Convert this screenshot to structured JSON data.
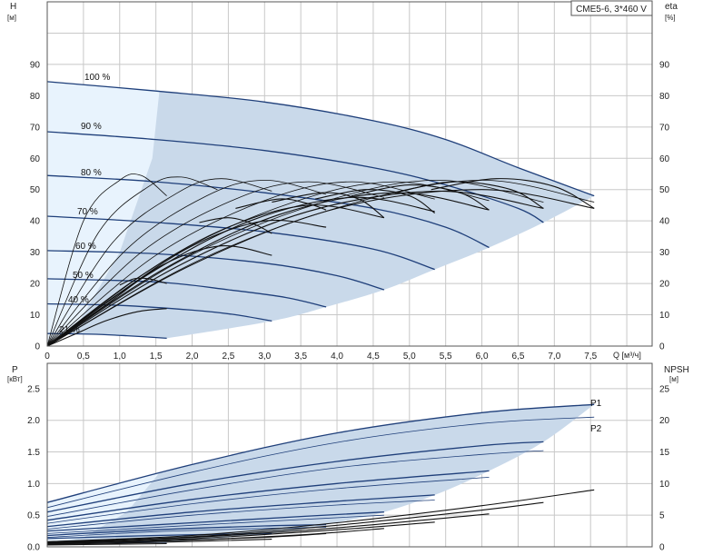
{
  "title": "CME5-6, 3*460 V",
  "colors": {
    "curve": "#1f3f7a",
    "eff": "#111111",
    "region": "#c9d9ea",
    "region_light": "#e8f3fd",
    "grid": "#c8c8c8"
  },
  "chart_data": [
    {
      "type": "line",
      "name": "head",
      "y_left_label": "H",
      "y_left_unit": "[м]",
      "y_right_label": "eta",
      "y_right_unit": "[%]",
      "x_label": "Q [м³/ч]",
      "xlim": [
        0,
        8.35
      ],
      "ylim": [
        0,
        110
      ],
      "x_ticks": [
        0,
        0.5,
        1.0,
        1.5,
        2.0,
        2.5,
        3.0,
        3.5,
        4.0,
        4.5,
        5.0,
        5.5,
        6.0,
        6.5,
        7.0,
        7.5
      ],
      "x_tick_labels": [
        "0",
        "0,5",
        "1,0",
        "1,5",
        "2,0",
        "2,5",
        "3,0",
        "3,5",
        "4,0",
        "4,5",
        "5,0",
        "5,5",
        "6,0",
        "6,5",
        "7,0",
        "7,5"
      ],
      "y_ticks": [
        0,
        10,
        20,
        30,
        40,
        50,
        60,
        70,
        80,
        90
      ],
      "y_right_ticks": [
        0,
        10,
        20,
        30,
        40,
        50,
        60,
        70,
        80,
        90
      ],
      "grid": true,
      "speed_curves": [
        {
          "label": "100 %",
          "q": [
            0,
            1.5,
            3.0,
            4.5,
            5.5,
            6.5,
            7.55
          ],
          "h": [
            84.5,
            81.5,
            78,
            72,
            66,
            57,
            48
          ]
        },
        {
          "label": "90 %",
          "q": [
            0,
            1.5,
            3.0,
            4.5,
            5.5,
            6.5,
            6.85
          ],
          "h": [
            68.5,
            66,
            62.5,
            57,
            51.5,
            44,
            39.5
          ]
        },
        {
          "label": "80 %",
          "q": [
            0,
            1.5,
            3.0,
            4.5,
            5.5,
            6.1
          ],
          "h": [
            54.5,
            52.5,
            49,
            44,
            38,
            31.5
          ]
        },
        {
          "label": "70 %",
          "q": [
            0,
            1.5,
            3.0,
            4.5,
            5.35
          ],
          "h": [
            41.5,
            39.5,
            36.5,
            31,
            24.5
          ]
        },
        {
          "label": "60 %",
          "q": [
            0,
            1.5,
            3.0,
            4.0,
            4.65
          ],
          "h": [
            30.5,
            29.5,
            26.5,
            22.5,
            18
          ]
        },
        {
          "label": "50 %",
          "q": [
            0,
            1.5,
            2.5,
            3.3,
            3.85
          ],
          "h": [
            21.5,
            20.5,
            18,
            15.5,
            12.5
          ]
        },
        {
          "label": "40 %",
          "q": [
            0,
            1.0,
            2.0,
            2.6,
            3.1
          ],
          "h": [
            13.5,
            13,
            11.5,
            10,
            8
          ]
        },
        {
          "label": "21 %",
          "q": [
            0,
            0.6,
            1.1,
            1.65
          ],
          "h": [
            4,
            3.8,
            3.3,
            2.5
          ]
        }
      ],
      "efficiency_curves": [
        {
          "q": [
            0,
            0.5,
            1.0,
            1.3,
            1.65
          ],
          "eta": [
            0,
            40,
            53,
            54.5,
            48
          ]
        },
        {
          "q": [
            0,
            0.7,
            1.4,
            1.85,
            2.35
          ],
          "eta": [
            0,
            36,
            51,
            54,
            50
          ]
        },
        {
          "q": [
            0,
            0.9,
            1.8,
            2.4,
            3.1
          ],
          "eta": [
            0,
            33,
            49,
            53.5,
            49.5
          ]
        },
        {
          "q": [
            0,
            1.1,
            2.2,
            3.0,
            3.85
          ],
          "eta": [
            0,
            31,
            48,
            53,
            48.5
          ]
        },
        {
          "q": [
            0,
            1.3,
            2.6,
            3.6,
            4.65
          ],
          "eta": [
            0,
            30,
            47,
            52.5,
            47.5
          ]
        },
        {
          "q": [
            0,
            1.5,
            3.0,
            4.2,
            5.35
          ],
          "eta": [
            0,
            29,
            46.5,
            52.5,
            47
          ]
        },
        {
          "q": [
            0,
            1.7,
            3.4,
            4.8,
            6.1
          ],
          "eta": [
            0,
            28.5,
            46,
            52.5,
            46.5
          ]
        },
        {
          "q": [
            0,
            1.9,
            3.8,
            5.4,
            6.85
          ],
          "eta": [
            0,
            28,
            46,
            53,
            46
          ]
        },
        {
          "q": [
            0,
            2.1,
            4.2,
            6.0,
            7.55
          ],
          "eta": [
            0,
            27.5,
            45.5,
            53,
            46
          ]
        },
        {
          "q": [
            0,
            0.4,
            0.8,
            1.25,
            1.65
          ],
          "eta": [
            0,
            4,
            8,
            11,
            12
          ]
        },
        {
          "q": [
            0,
            0.8,
            1.6,
            2.4,
            3.1
          ],
          "eta": [
            0,
            13,
            26,
            32,
            29
          ]
        },
        {
          "q": [
            0,
            1.0,
            2.0,
            3.0,
            3.85
          ],
          "eta": [
            0,
            17,
            32,
            40,
            38
          ]
        },
        {
          "q": [
            0,
            1.2,
            2.4,
            3.6,
            4.65
          ],
          "eta": [
            0,
            21,
            37,
            45,
            41
          ]
        },
        {
          "q": [
            0,
            1.4,
            2.8,
            4.2,
            5.35
          ],
          "eta": [
            0,
            23,
            40,
            47.5,
            43
          ]
        },
        {
          "q": [
            0,
            1.6,
            3.2,
            4.8,
            6.1
          ],
          "eta": [
            0,
            24.5,
            42,
            49,
            43.5
          ]
        },
        {
          "q": [
            0,
            1.8,
            3.6,
            5.4,
            6.85
          ],
          "eta": [
            0,
            25.5,
            43,
            49.5,
            44
          ]
        },
        {
          "q": [
            0,
            2.0,
            4.0,
            6.0,
            7.55
          ],
          "eta": [
            0,
            26,
            44,
            50,
            44
          ]
        }
      ],
      "efficiency_loops": [
        {
          "q": [
            1.0,
            1.2,
            1.4,
            1.65
          ],
          "eta": [
            19.5,
            21.5,
            21.5,
            20
          ]
        },
        {
          "q": [
            2.1,
            2.5,
            2.85,
            3.1
          ],
          "eta": [
            39.5,
            41,
            39,
            36
          ]
        },
        {
          "q": [
            2.6,
            3.2,
            3.6,
            3.85
          ],
          "eta": [
            44,
            47,
            45.5,
            43.5
          ]
        },
        {
          "q": [
            3.1,
            3.8,
            4.3,
            4.65
          ],
          "eta": [
            46,
            49,
            47,
            41
          ]
        },
        {
          "q": [
            3.7,
            4.4,
            5.0,
            5.35
          ],
          "eta": [
            47,
            50,
            48,
            42.5
          ]
        },
        {
          "q": [
            4.2,
            5.0,
            5.7,
            6.1
          ],
          "eta": [
            48,
            51.5,
            49,
            43.5
          ]
        },
        {
          "q": [
            4.8,
            5.6,
            6.4,
            6.85
          ],
          "eta": [
            49,
            52.5,
            50,
            44
          ]
        },
        {
          "q": [
            5.3,
            6.2,
            7.0,
            7.55
          ],
          "eta": [
            50,
            53.5,
            51,
            44
          ]
        }
      ]
    },
    {
      "type": "line",
      "name": "power",
      "y_left_label": "P",
      "y_left_unit": "[кВт]",
      "y_right_label": "NPSH",
      "y_right_unit": "[м]",
      "xlim": [
        0,
        8.35
      ],
      "ylim": [
        0,
        2.9
      ],
      "y_ticks": [
        0,
        0.5,
        1.0,
        1.5,
        2.0,
        2.5
      ],
      "y_tick_labels": [
        "0.0",
        "0.5",
        "1.0",
        "1.5",
        "2.0",
        "2.5"
      ],
      "y_right_ticks": [
        0,
        5,
        10,
        15,
        20,
        25
      ],
      "series_labels": [
        "P1",
        "P2"
      ],
      "p1_curves": [
        {
          "q": [
            0,
            2.0,
            4.0,
            6.0,
            7.55
          ],
          "p": [
            0.7,
            1.3,
            1.8,
            2.12,
            2.25
          ]
        },
        {
          "q": [
            0,
            2.0,
            4.0,
            6.0,
            6.85
          ],
          "p": [
            0.55,
            1.0,
            1.35,
            1.6,
            1.66
          ]
        },
        {
          "q": [
            0,
            2.0,
            4.0,
            6.1
          ],
          "p": [
            0.42,
            0.75,
            1.0,
            1.2
          ]
        },
        {
          "q": [
            0,
            2.0,
            4.0,
            5.35
          ],
          "p": [
            0.32,
            0.55,
            0.72,
            0.82
          ]
        },
        {
          "q": [
            0,
            2.0,
            3.5,
            4.65
          ],
          "p": [
            0.25,
            0.38,
            0.48,
            0.55
          ]
        },
        {
          "q": [
            0,
            1.5,
            3.0,
            3.85
          ],
          "p": [
            0.18,
            0.27,
            0.33,
            0.35
          ]
        },
        {
          "q": [
            0,
            1.5,
            3.1
          ],
          "p": [
            0.13,
            0.18,
            0.21
          ]
        },
        {
          "q": [
            0,
            0.8,
            1.65
          ],
          "p": [
            0.06,
            0.07,
            0.07
          ]
        }
      ],
      "p2_curves": [
        {
          "q": [
            0,
            2.0,
            4.0,
            6.0,
            7.55
          ],
          "p": [
            0.62,
            1.18,
            1.65,
            1.95,
            2.05
          ]
        },
        {
          "q": [
            0,
            2.0,
            4.0,
            6.0,
            6.85
          ],
          "p": [
            0.48,
            0.9,
            1.25,
            1.46,
            1.52
          ]
        },
        {
          "q": [
            0,
            2.0,
            4.0,
            6.1
          ],
          "p": [
            0.37,
            0.68,
            0.92,
            1.1
          ]
        },
        {
          "q": [
            0,
            2.0,
            4.0,
            5.35
          ],
          "p": [
            0.28,
            0.5,
            0.66,
            0.74
          ]
        },
        {
          "q": [
            0,
            2.0,
            3.5,
            4.65
          ],
          "p": [
            0.21,
            0.34,
            0.43,
            0.5
          ]
        },
        {
          "q": [
            0,
            1.5,
            3.0,
            3.85
          ],
          "p": [
            0.15,
            0.24,
            0.29,
            0.31
          ]
        }
      ],
      "npsh_curves": [
        {
          "q": [
            0,
            2.0,
            4.0,
            6.0,
            7.55
          ],
          "npsh": [
            0.8,
            1.8,
            3.8,
            6.5,
            9.0
          ]
        },
        {
          "q": [
            0,
            2.0,
            4.0,
            6.0,
            6.85
          ],
          "npsh": [
            0.8,
            1.6,
            3.4,
            5.8,
            7.0
          ]
        },
        {
          "q": [
            0,
            2.0,
            4.0,
            6.1
          ],
          "npsh": [
            0.7,
            1.5,
            3.0,
            5.2
          ]
        },
        {
          "q": [
            0,
            2.0,
            4.0,
            5.35
          ],
          "npsh": [
            0.6,
            1.3,
            2.7,
            3.9
          ]
        },
        {
          "q": [
            0,
            2.0,
            3.5,
            4.65
          ],
          "npsh": [
            0.5,
            1.1,
            1.9,
            2.9
          ]
        },
        {
          "q": [
            0,
            1.5,
            3.0,
            3.85
          ],
          "npsh": [
            0.5,
            0.9,
            1.5,
            2.1
          ]
        },
        {
          "q": [
            0,
            1.5,
            3.1
          ],
          "npsh": [
            0.4,
            0.7,
            1.2
          ]
        },
        {
          "q": [
            0,
            0.8,
            1.65
          ],
          "npsh": [
            0.3,
            0.4,
            0.5
          ]
        }
      ]
    }
  ]
}
